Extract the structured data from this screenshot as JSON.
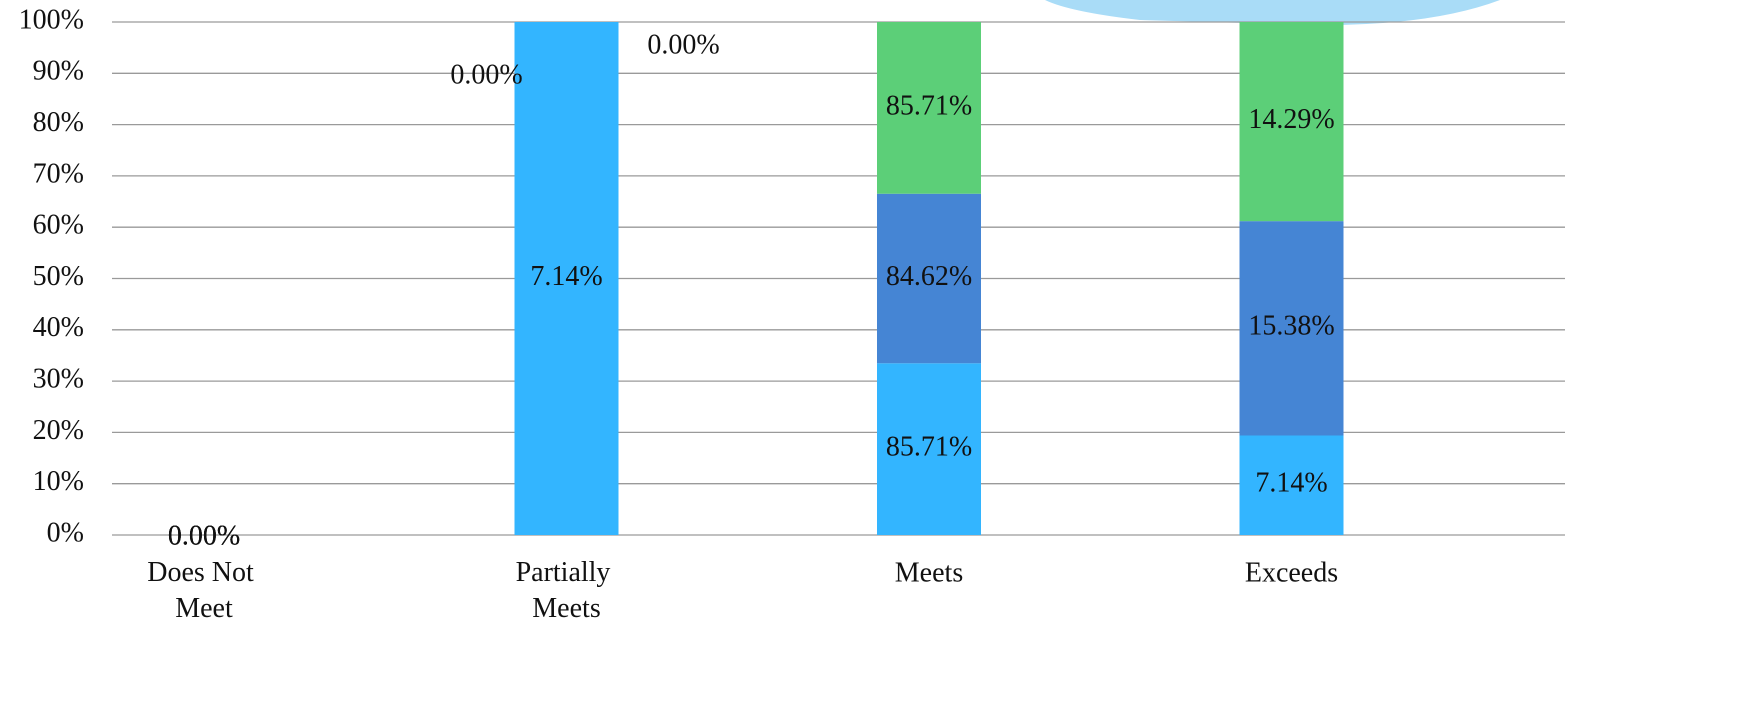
{
  "chart_data": {
    "type": "bar",
    "stacking": "percent",
    "categories": [
      "Does Not Meet",
      "Partially Meets",
      "Meets",
      "Exceeds"
    ],
    "series": [
      {
        "color": "#33b5ff",
        "values": [
          0,
          7.14,
          85.71,
          7.14
        ],
        "value_labels": [
          "0.00%",
          "7.14%",
          "85.71%",
          "7.14%"
        ]
      },
      {
        "color": "#4585d4",
        "values": [
          0,
          0,
          84.62,
          15.38
        ],
        "value_labels": [
          "0.00%",
          "0.00%",
          "84.62%",
          "15.38%"
        ]
      },
      {
        "color": "#5ccf78",
        "values": [
          0,
          0,
          85.71,
          14.29
        ],
        "value_labels": [
          "0.00%",
          "0.00%",
          "85.71%",
          "14.29%"
        ]
      }
    ],
    "ylim": [
      0,
      100
    ],
    "yticks": [
      {
        "value": 0,
        "label": "0%"
      },
      {
        "value": 10,
        "label": "10%"
      },
      {
        "value": 20,
        "label": "20%"
      },
      {
        "value": 30,
        "label": "30%"
      },
      {
        "value": 40,
        "label": "40%"
      },
      {
        "value": 50,
        "label": "50%"
      },
      {
        "value": 60,
        "label": "60%"
      },
      {
        "value": 70,
        "label": "70%"
      },
      {
        "value": 80,
        "label": "80%"
      },
      {
        "value": 90,
        "label": "90%"
      },
      {
        "value": 100,
        "label": "100%"
      }
    ],
    "grid": true
  }
}
